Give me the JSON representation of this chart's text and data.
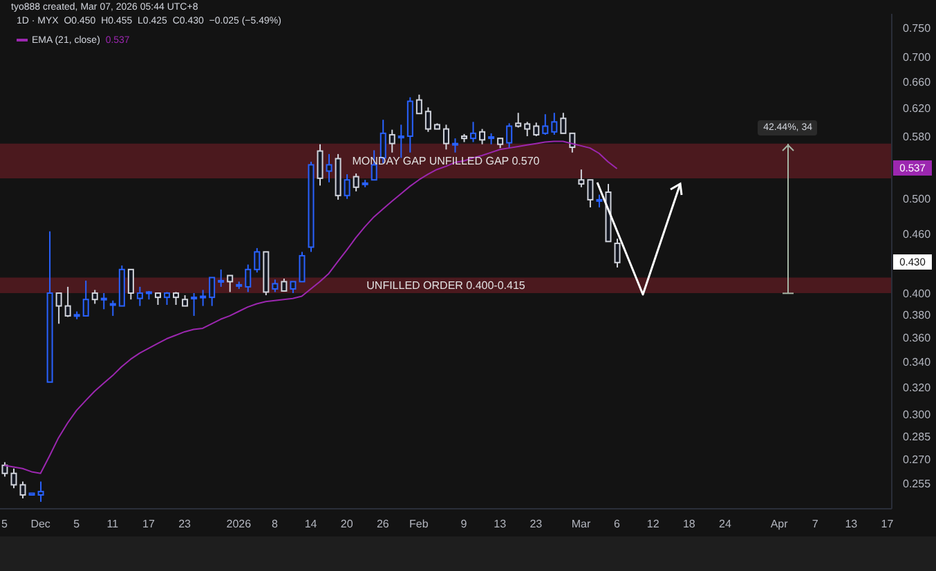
{
  "chart_data": {
    "type": "candlestick",
    "title": "1D · MYX  O0.450  H0.455  L0.425  C0.430  −0.025 (−5.49%)",
    "subtitle": "tyo888 created, Mar 07, 2026 05:44 UTC+8",
    "categories": [
      "5",
      null,
      null,
      null,
      "Dec",
      null,
      null,
      null,
      "5",
      null,
      null,
      null,
      "11",
      null,
      null,
      null,
      "17",
      null,
      null,
      null,
      "23",
      null,
      null,
      null,
      null,
      null,
      "2026",
      null,
      null,
      null,
      "8",
      null,
      null,
      null,
      "14",
      null,
      null,
      null,
      "20",
      null,
      null,
      null,
      "26",
      null,
      null,
      null,
      "Feb",
      null,
      null,
      null,
      null,
      "9",
      null,
      null,
      null,
      "13",
      null,
      null,
      null,
      "23",
      null,
      null,
      null,
      null,
      "Mar",
      null,
      null,
      null,
      "6",
      null,
      null,
      null,
      "12",
      null,
      null,
      null,
      "18",
      null,
      null,
      null,
      "24",
      null,
      null,
      null,
      null,
      null,
      "Apr",
      null,
      null,
      null,
      "7",
      null,
      null,
      null,
      "13",
      null,
      null,
      null,
      "17"
    ],
    "ohlc": [
      [
        0.266,
        0.268,
        0.259,
        0.261
      ],
      [
        0.261,
        0.264,
        0.252,
        0.254
      ],
      [
        0.254,
        0.256,
        0.246,
        0.248
      ],
      [
        0.248,
        0.249,
        0.248,
        0.249
      ],
      [
        0.248,
        0.256,
        0.244,
        0.25
      ],
      [
        0.324,
        0.463,
        0.324,
        0.4
      ],
      [
        0.4,
        0.4,
        0.372,
        0.388
      ],
      [
        0.388,
        0.406,
        0.378,
        0.379
      ],
      [
        0.379,
        0.383,
        0.376,
        0.38
      ],
      [
        0.379,
        0.412,
        0.379,
        0.394
      ],
      [
        0.4,
        0.403,
        0.39,
        0.394
      ],
      [
        0.395,
        0.4,
        0.385,
        0.395
      ],
      [
        0.39,
        0.393,
        0.379,
        0.39
      ],
      [
        0.388,
        0.427,
        0.388,
        0.423
      ],
      [
        0.423,
        0.423,
        0.394,
        0.4
      ],
      [
        0.395,
        0.406,
        0.388,
        0.4
      ],
      [
        0.401,
        0.402,
        0.394,
        0.401
      ],
      [
        0.4,
        0.4,
        0.389,
        0.396
      ],
      [
        0.396,
        0.401,
        0.389,
        0.4
      ],
      [
        0.4,
        0.401,
        0.389,
        0.396
      ],
      [
        0.394,
        0.398,
        0.388,
        0.388
      ],
      [
        0.395,
        0.4,
        0.379,
        0.396
      ],
      [
        0.396,
        0.403,
        0.388,
        0.397
      ],
      [
        0.396,
        0.415,
        0.388,
        0.415
      ],
      [
        0.411,
        0.423,
        0.406,
        0.412
      ],
      [
        0.417,
        0.417,
        0.401,
        0.411
      ],
      [
        0.408,
        0.411,
        0.404,
        0.408
      ],
      [
        0.406,
        0.428,
        0.401,
        0.423
      ],
      [
        0.423,
        0.445,
        0.42,
        0.441
      ],
      [
        0.441,
        0.441,
        0.398,
        0.401
      ],
      [
        0.404,
        0.413,
        0.401,
        0.409
      ],
      [
        0.411,
        0.414,
        0.402,
        0.402
      ],
      [
        0.404,
        0.411,
        0.4,
        0.411
      ],
      [
        0.411,
        0.441,
        0.411,
        0.437
      ],
      [
        0.446,
        0.546,
        0.441,
        0.542
      ],
      [
        0.56,
        0.569,
        0.516,
        0.525
      ],
      [
        0.534,
        0.556,
        0.52,
        0.542
      ],
      [
        0.55,
        0.556,
        0.499,
        0.504
      ],
      [
        0.504,
        0.53,
        0.5,
        0.523
      ],
      [
        0.527,
        0.531,
        0.509,
        0.514
      ],
      [
        0.518,
        0.523,
        0.514,
        0.519
      ],
      [
        0.523,
        0.561,
        0.523,
        0.542
      ],
      [
        0.551,
        0.603,
        0.544,
        0.584
      ],
      [
        0.582,
        0.589,
        0.558,
        0.57
      ],
      [
        0.578,
        0.596,
        0.551,
        0.58
      ],
      [
        0.58,
        0.636,
        0.558,
        0.63
      ],
      [
        0.632,
        0.64,
        0.612,
        0.612
      ],
      [
        0.615,
        0.621,
        0.586,
        0.59
      ],
      [
        0.596,
        0.598,
        0.59,
        0.59
      ],
      [
        0.59,
        0.596,
        0.562,
        0.57
      ],
      [
        0.57,
        0.577,
        0.558,
        0.57
      ],
      [
        0.58,
        0.583,
        0.572,
        0.577
      ],
      [
        0.577,
        0.6,
        0.572,
        0.584
      ],
      [
        0.586,
        0.59,
        0.569,
        0.575
      ],
      [
        0.578,
        0.584,
        0.569,
        0.579
      ],
      [
        0.577,
        0.577,
        0.564,
        0.569
      ],
      [
        0.571,
        0.598,
        0.564,
        0.594
      ],
      [
        0.598,
        0.613,
        0.592,
        0.594
      ],
      [
        0.597,
        0.6,
        0.58,
        0.59
      ],
      [
        0.594,
        0.599,
        0.58,
        0.582
      ],
      [
        0.584,
        0.611,
        0.582,
        0.594
      ],
      [
        0.586,
        0.613,
        0.582,
        0.6
      ],
      [
        0.605,
        0.613,
        0.584,
        0.584
      ],
      [
        0.584,
        0.584,
        0.558,
        0.565
      ],
      [
        0.523,
        0.536,
        0.514,
        0.518
      ],
      [
        0.523,
        0.523,
        0.49,
        0.499
      ],
      [
        0.499,
        0.505,
        0.49,
        0.499
      ],
      [
        0.508,
        0.518,
        0.452,
        0.452
      ],
      [
        0.45,
        0.455,
        0.425,
        0.43
      ],
      null,
      null,
      null,
      null,
      null,
      null,
      null,
      null,
      null,
      null,
      null,
      null,
      null,
      null,
      null,
      null,
      null,
      null,
      null,
      null,
      null,
      null,
      null,
      null,
      null,
      null,
      null,
      null,
      null,
      null
    ],
    "colors": [
      "#d1d4dc",
      "#d1d4dc",
      "#d1d4dc",
      "#2962ff",
      "#2962ff",
      "#2962ff",
      "#d1d4dc",
      "#d1d4dc",
      "#2962ff",
      "#2962ff",
      "#d1d4dc",
      "#2962ff",
      "#2962ff",
      "#2962ff",
      "#d1d4dc",
      "#2962ff",
      "#2962ff",
      "#d1d4dc",
      "#2962ff",
      "#d1d4dc",
      "#d1d4dc",
      "#2962ff",
      "#2962ff",
      "#2962ff",
      "#2962ff",
      "#d1d4dc",
      "#2962ff",
      "#2962ff",
      "#2962ff",
      "#d1d4dc",
      "#2962ff",
      "#d1d4dc",
      "#2962ff",
      "#2962ff",
      "#2962ff",
      "#d1d4dc",
      "#2962ff",
      "#d1d4dc",
      "#2962ff",
      "#d1d4dc",
      "#2962ff",
      "#2962ff",
      "#2962ff",
      "#d1d4dc",
      "#2962ff",
      "#2962ff",
      "#d1d4dc",
      "#d1d4dc",
      "#d1d4dc",
      "#d1d4dc",
      "#2962ff",
      "#d1d4dc",
      "#2962ff",
      "#d1d4dc",
      "#2962ff",
      "#d1d4dc",
      "#2962ff",
      "#d1d4dc",
      "#d1d4dc",
      "#d1d4dc",
      "#2962ff",
      "#2962ff",
      "#d1d4dc",
      "#d1d4dc",
      "#d1d4dc",
      "#d1d4dc",
      "#2962ff",
      "#d1d4dc",
      "#d1d4dc",
      null,
      null,
      null,
      null,
      null,
      null,
      null,
      null,
      null,
      null,
      null,
      null,
      null,
      null,
      null,
      null,
      null,
      null,
      null,
      null,
      null,
      null,
      null,
      null,
      null,
      null,
      null,
      null,
      null,
      null
    ],
    "series": [
      {
        "type": "line",
        "name": "EMA (21, close)",
        "color": "#9c27b0",
        "values": [
          0.266,
          0.265,
          0.264,
          0.262,
          0.261,
          0.272,
          0.284,
          0.294,
          0.303,
          0.31,
          0.317,
          0.323,
          0.329,
          0.336,
          0.342,
          0.347,
          0.351,
          0.355,
          0.359,
          0.362,
          0.365,
          0.367,
          0.368,
          0.372,
          0.376,
          0.379,
          0.383,
          0.387,
          0.39,
          0.392,
          0.393,
          0.394,
          0.395,
          0.397,
          0.404,
          0.411,
          0.419,
          0.431,
          0.443,
          0.456,
          0.468,
          0.479,
          0.488,
          0.497,
          0.506,
          0.515,
          0.523,
          0.53,
          0.536,
          0.54,
          0.545,
          0.547,
          0.551,
          0.554,
          0.558,
          0.562,
          0.564,
          0.566,
          0.568,
          0.57,
          0.572,
          0.573,
          0.573,
          0.57,
          0.567,
          0.564,
          0.557,
          0.546,
          0.537,
          null,
          null,
          null,
          null,
          null,
          null,
          null,
          null,
          null,
          null,
          null,
          null,
          null,
          null,
          null,
          null,
          null,
          null,
          null,
          null,
          null,
          null,
          null,
          null,
          null,
          null,
          null,
          null,
          null,
          null
        ]
      }
    ],
    "ylim": [
      0.24,
      0.775
    ],
    "log": true,
    "yticks": [
      {
        "value": 0.255,
        "label": "0.255"
      },
      {
        "value": 0.27,
        "label": "0.270"
      },
      {
        "value": 0.285,
        "label": "0.285"
      },
      {
        "value": 0.3,
        "label": "0.300"
      },
      {
        "value": 0.32,
        "label": "0.320"
      },
      {
        "value": 0.34,
        "label": "0.340"
      },
      {
        "value": 0.36,
        "label": "0.360"
      },
      {
        "value": 0.38,
        "label": "0.380"
      },
      {
        "value": 0.4,
        "label": "0.400"
      },
      {
        "value": 0.46,
        "label": "0.460"
      },
      {
        "value": 0.5,
        "label": "0.500"
      },
      {
        "value": 0.58,
        "label": "0.580"
      },
      {
        "value": 0.62,
        "label": "0.620"
      },
      {
        "value": 0.66,
        "label": "0.660"
      },
      {
        "value": 0.7,
        "label": "0.700"
      },
      {
        "value": 0.75,
        "label": "0.750"
      }
    ],
    "bands": [
      {
        "axis": "y",
        "from": 0.4,
        "to": 0.415,
        "label": "UNFILLED ORDER 0.400-0.415",
        "color": "#7a1f28"
      },
      {
        "axis": "y",
        "from": 0.525,
        "to": 0.57,
        "label": "MONDAY GAP UNFILLED GAP 0.570",
        "color": "#7a1f28"
      }
    ],
    "annotations": [
      {
        "text": "42.44%, 34",
        "y": 0.57
      },
      {
        "text": "0.537",
        "y": 0.537
      },
      {
        "text": "0.430",
        "y": 0.43
      }
    ],
    "legend": "top left"
  }
}
